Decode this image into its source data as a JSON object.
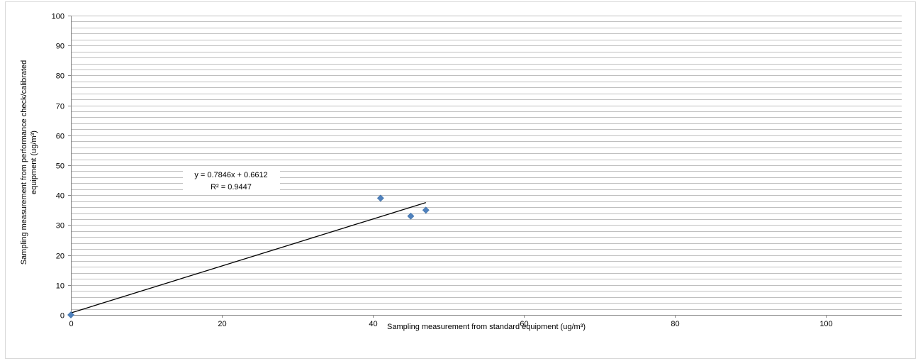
{
  "chart_data": {
    "type": "scatter",
    "title": "",
    "xlabel": "Sampling measurement from standard equipment  (ug/m³)",
    "ylabel_line1": "Sampling measurement from performance check/calibrated",
    "ylabel_line2": "equipment  (ug/m³)",
    "xlim": [
      0,
      110
    ],
    "ylim": [
      0,
      100
    ],
    "xticks": [
      0,
      20,
      40,
      60,
      80,
      100
    ],
    "yticks": [
      0,
      10,
      20,
      30,
      40,
      50,
      60,
      70,
      80,
      90,
      100
    ],
    "minor_grid_step": 2,
    "grid": true,
    "legend": "none",
    "series": [
      {
        "points": [
          {
            "x": 0,
            "y": 0
          },
          {
            "x": 41,
            "y": 39
          },
          {
            "x": 45,
            "y": 33
          },
          {
            "x": 47,
            "y": 35
          }
        ],
        "color": "#4f81bd",
        "marker": "diamond"
      }
    ],
    "trendline": {
      "slope": 0.7846,
      "intercept": 0.6612,
      "x_range": [
        0,
        47
      ],
      "equation": "y = 0.7846x + 0.6612",
      "r_squared": "R² = 0.9447",
      "color": "#000000"
    }
  },
  "colors": {
    "grid": "#bfbfbf",
    "axis": "#868686"
  }
}
